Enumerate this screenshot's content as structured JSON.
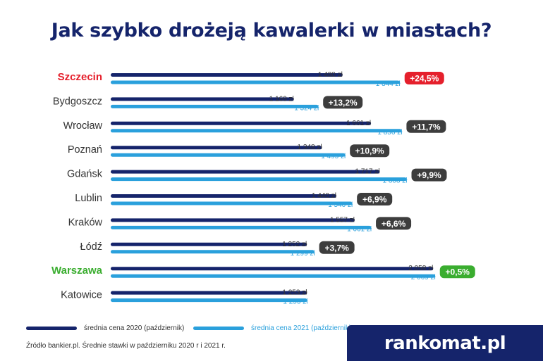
{
  "title": "Jak szybko drożeją kawalerki w miastach?",
  "legend": {
    "series_2020": "średnia cena 2020 (październik)",
    "series_2021": "średnia cena 2021 (październik)"
  },
  "source": "Źródło bankier.pl. Średnie stawki w październiku 2020 r i 2021 r.",
  "brand": "rankomat.pl",
  "colors": {
    "series_2020": "#15246b",
    "series_2021": "#2aa0dc",
    "badge_default": "#3d3d3d",
    "highlight_top": "#e5202c",
    "highlight_bottom": "#3aad2f",
    "text": "#333333"
  },
  "chart_data": {
    "type": "bar",
    "orientation": "horizontal",
    "categories": [
      "Szczecin",
      "Bydgoszcz",
      "Wrocław",
      "Poznań",
      "Gdańsk",
      "Lublin",
      "Kraków",
      "Łódź",
      "Warszawa",
      "Katowice"
    ],
    "series": [
      {
        "name": "średnia cena 2020 (październik)",
        "values": [
          1480,
          1169,
          1661,
          1348,
          1717,
          1440,
          1557,
          1252,
          2058,
          1253
        ]
      },
      {
        "name": "średnia cena 2021 (październik)",
        "values": [
          1844,
          1324,
          1856,
          1495,
          1888,
          1540,
          1661,
          1299,
          2069,
          1253
        ]
      }
    ],
    "value_labels_2020": [
      "1 480 zł",
      "1 169 zł",
      "1 661 zł",
      "1 348 zł",
      "1 717 zł",
      "1 440 zł",
      "1 557 zł",
      "1 252 zł",
      "2 058 zł",
      "1 253 zł"
    ],
    "value_labels_2021": [
      "1 844 zł",
      "1 324 zł",
      "1 856 zł",
      "1 495 zł",
      "1 888 zł",
      "1 540 zł",
      "1 661 zł",
      "1 299 zł",
      "2 069 zł",
      "1 253 zł"
    ],
    "changes": [
      "+24,5%",
      "+13,2%",
      "+11,7%",
      "+10,9%",
      "+9,9%",
      "+6,9%",
      "+6,6%",
      "+3,7%",
      "+0,5%",
      ""
    ],
    "highlight": {
      "Szczecin": "red",
      "Warszawa": "green"
    },
    "xlim": [
      0,
      2069
    ]
  }
}
